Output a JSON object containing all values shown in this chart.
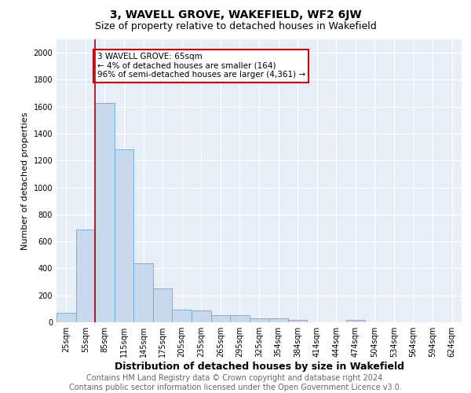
{
  "title": "3, WAVELL GROVE, WAKEFIELD, WF2 6JW",
  "subtitle": "Size of property relative to detached houses in Wakefield",
  "xlabel": "Distribution of detached houses by size in Wakefield",
  "ylabel": "Number of detached properties",
  "bar_color": "#c8d9ee",
  "bar_edge_color": "#6aaad4",
  "background_color": "#e8eef8",
  "categories": [
    "25sqm",
    "55sqm",
    "85sqm",
    "115sqm",
    "145sqm",
    "175sqm",
    "205sqm",
    "235sqm",
    "265sqm",
    "295sqm",
    "325sqm",
    "354sqm",
    "384sqm",
    "414sqm",
    "444sqm",
    "474sqm",
    "504sqm",
    "534sqm",
    "564sqm",
    "594sqm",
    "624sqm"
  ],
  "values": [
    70,
    690,
    1630,
    1285,
    440,
    250,
    95,
    90,
    50,
    50,
    30,
    30,
    20,
    0,
    0,
    20,
    0,
    0,
    0,
    0,
    0
  ],
  "ylim": [
    0,
    2100
  ],
  "yticks": [
    0,
    200,
    400,
    600,
    800,
    1000,
    1200,
    1400,
    1600,
    1800,
    2000
  ],
  "vline_x": 1.5,
  "vline_color": "#aa0000",
  "annotation_text": "3 WAVELL GROVE: 65sqm\n← 4% of detached houses are smaller (164)\n96% of semi-detached houses are larger (4,361) →",
  "annotation_box_color": "#ffffff",
  "annotation_border_color": "#cc0000",
  "footer_text": "Contains HM Land Registry data © Crown copyright and database right 2024.\nContains public sector information licensed under the Open Government Licence v3.0.",
  "title_fontsize": 10,
  "subtitle_fontsize": 9,
  "xlabel_fontsize": 9,
  "ylabel_fontsize": 8,
  "tick_fontsize": 7,
  "annotation_fontsize": 7.5,
  "footer_fontsize": 7
}
